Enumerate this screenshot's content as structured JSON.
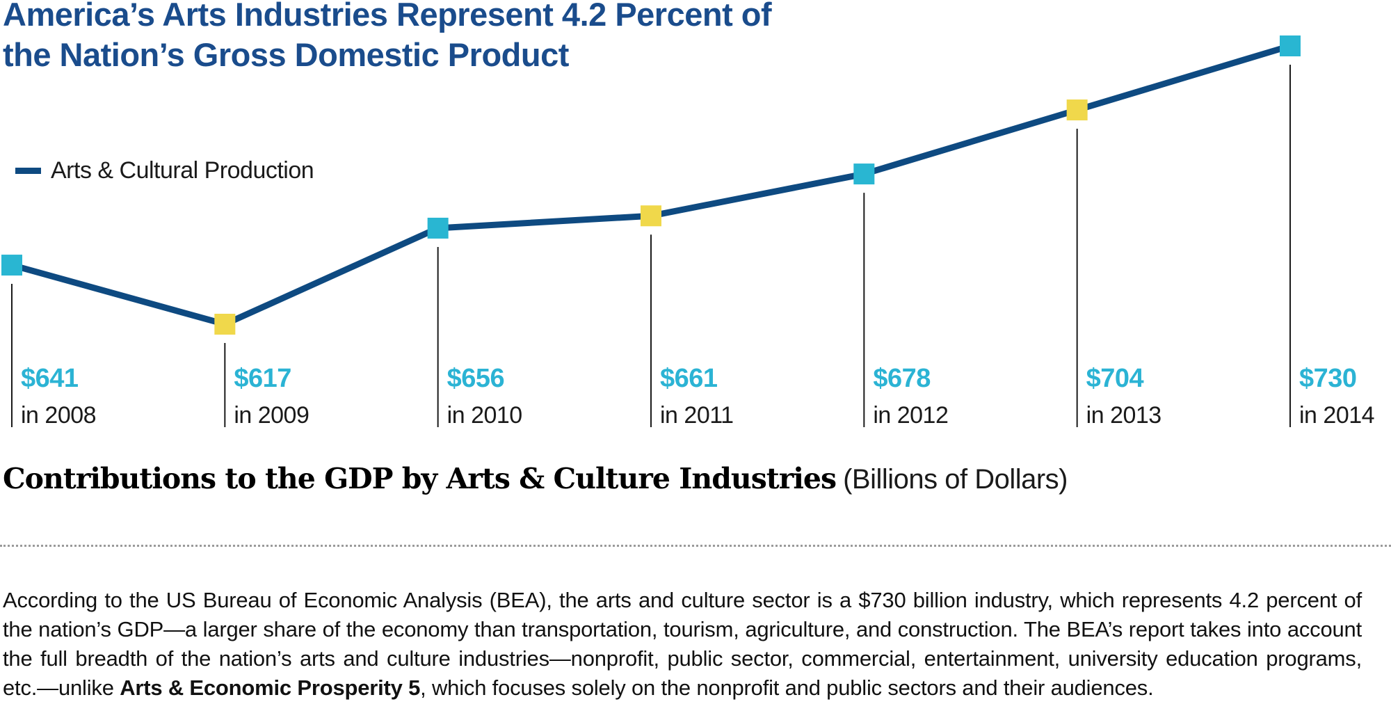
{
  "title": {
    "line1": "America’s Arts Industries Represent 4.2 Percent of",
    "line2": "the Nation’s Gross Domestic Product"
  },
  "legend": {
    "label": "Arts & Cultural Production"
  },
  "chart_data": {
    "type": "line",
    "title": "America’s Arts Industries Represent 4.2 Percent of the Nation’s Gross Domestic Product",
    "categories": [
      "2008",
      "2009",
      "2010",
      "2011",
      "2012",
      "2013",
      "2014"
    ],
    "series": [
      {
        "name": "Arts & Cultural Production",
        "values": [
          641,
          617,
          656,
          661,
          678,
          704,
          730
        ]
      }
    ],
    "point_labels": [
      {
        "value": "$641",
        "year": "in 2008"
      },
      {
        "value": "$617",
        "year": "in 2009"
      },
      {
        "value": "$656",
        "year": "in 2010"
      },
      {
        "value": "$661",
        "year": "in 2011"
      },
      {
        "value": "$678",
        "year": "in 2012"
      },
      {
        "value": "$704",
        "year": "in 2013"
      },
      {
        "value": "$730",
        "year": "in 2014"
      }
    ],
    "units": "Billions of Dollars",
    "ylim": [
      600,
      745
    ],
    "grid": false,
    "legend_position": "upper-left",
    "line_color": "#0e4a81",
    "marker_colors": [
      "#29b6d2",
      "#f0d84b",
      "#29b6d2",
      "#f0d84b",
      "#29b6d2",
      "#f0d84b",
      "#29b6d2"
    ],
    "drop_line_color": "#1a1a1a",
    "value_label_color": "#2bb3d4"
  },
  "caption": {
    "bold": "Contributions to the GDP by Arts & Culture Industries",
    "normal": "(Billions of Dollars)"
  },
  "paragraph": {
    "segments": [
      {
        "text": "According to the US Bureau of Economic Analysis (BEA), the arts and culture sector is a $730 billion industry, which represents 4.2 percent of the nation’s GDP—a larger share of the economy than transportation, tourism, agriculture, and construction. The BEA’s report takes into account the full breadth of the nation’s arts and culture industries—nonprofit, public sector, commercial, entertainment, university education programs, etc.—unlike ",
        "bold": false
      },
      {
        "text": "Arts & Economic Prosperity 5",
        "bold": true
      },
      {
        "text": ", which focuses solely on the nonprofit and public sectors and their audiences.",
        "bold": false
      }
    ]
  },
  "colors": {
    "title_navy": "#1a4c8c",
    "line_navy": "#0e4a81",
    "teal": "#29b6d2",
    "yellow": "#f0d84b",
    "value_teal": "#2bb3d4",
    "text_black": "#1a1a1a"
  }
}
